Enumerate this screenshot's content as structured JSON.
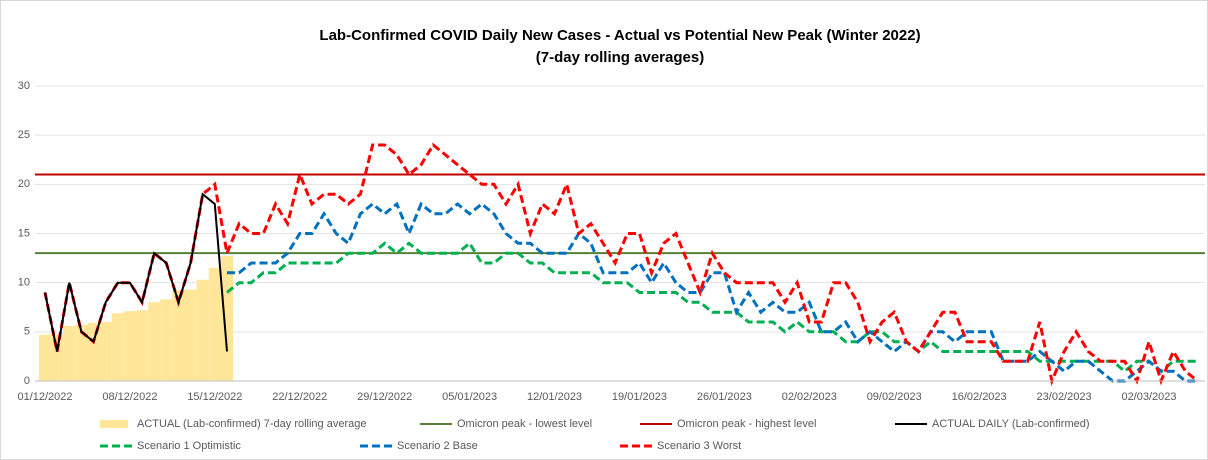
{
  "chart_data": {
    "type": "line",
    "title": "Lab-Confirmed COVID Daily New Cases - Actual vs Potential New Peak (Winter 2022)",
    "subtitle": "(7-day rolling averages)",
    "categories": [
      "01/12/2022",
      null,
      null,
      null,
      null,
      null,
      null,
      "08/12/2022",
      null,
      null,
      null,
      null,
      null,
      null,
      "15/12/2022",
      null,
      null,
      null,
      null,
      null,
      null,
      "22/12/2022",
      null,
      null,
      null,
      null,
      null,
      null,
      "29/12/2022",
      null,
      null,
      null,
      null,
      null,
      null,
      "05/01/2023",
      null,
      null,
      null,
      null,
      null,
      null,
      "12/01/2023",
      null,
      null,
      null,
      null,
      null,
      null,
      "19/01/2023",
      null,
      null,
      null,
      null,
      null,
      null,
      "26/01/2023",
      null,
      null,
      null,
      null,
      null,
      null,
      "02/02/2023",
      null,
      null,
      null,
      null,
      null,
      null,
      "09/02/2023",
      null,
      null,
      null,
      null,
      null,
      null,
      "16/02/2023",
      null,
      null,
      null,
      null,
      null,
      null,
      "23/02/2023",
      null,
      null,
      null,
      null,
      null,
      null,
      "02/03/2023",
      null,
      null,
      null,
      null
    ],
    "ylim": [
      0,
      30
    ],
    "yticks": [
      0,
      5,
      10,
      15,
      20,
      25,
      30
    ],
    "grid": true,
    "series": [
      {
        "name": "ACTUAL (Lab-confirmed) 7-day rolling average",
        "style": "bar",
        "color": "#ffe699",
        "values": [
          4.7,
          4.7,
          5.6,
          5.7,
          5.9,
          6.0,
          6.9,
          7.1,
          7.2,
          8.0,
          8.3,
          9.2,
          9.3,
          10.3,
          11.5,
          12.7,
          null,
          null,
          null,
          null,
          null,
          null,
          null,
          null,
          null,
          null,
          null,
          null,
          null,
          null,
          null,
          null,
          null,
          null,
          null,
          null,
          null,
          null,
          null,
          null,
          null,
          null,
          null,
          null,
          null,
          null,
          null,
          null,
          null,
          null,
          null,
          null,
          null,
          null,
          null,
          null,
          null,
          null,
          null,
          null,
          null,
          null,
          null,
          null,
          null,
          null,
          null,
          null,
          null,
          null,
          null,
          null,
          null,
          null,
          null,
          null,
          null,
          null,
          null,
          null,
          null,
          null,
          null,
          null,
          null,
          null,
          null,
          null,
          null,
          null,
          null,
          null,
          null,
          null,
          null,
          null
        ]
      },
      {
        "name": "Omicron peak - lowest level",
        "style": "hline",
        "color": "#548235",
        "value": 13
      },
      {
        "name": "Omicron peak - highest level",
        "style": "hline",
        "color": "#c00000",
        "value": 21
      },
      {
        "name": "ACTUAL DAILY (Lab-confirmed)",
        "style": "solid",
        "color": "#000000",
        "values": [
          9,
          3,
          10,
          5,
          4,
          8,
          10,
          10,
          8,
          13,
          12,
          8,
          12,
          19,
          18,
          3,
          null,
          null,
          null,
          null,
          null,
          null,
          null,
          null,
          null,
          null,
          null,
          null,
          null,
          null,
          null,
          null,
          null,
          null,
          null,
          null,
          null,
          null,
          null,
          null,
          null,
          null,
          null,
          null,
          null,
          null,
          null,
          null,
          null,
          null,
          null,
          null,
          null,
          null,
          null,
          null,
          null,
          null,
          null,
          null,
          null,
          null,
          null,
          null,
          null,
          null,
          null,
          null,
          null,
          null,
          null,
          null,
          null,
          null,
          null,
          null,
          null,
          null,
          null,
          null,
          null,
          null,
          null,
          null,
          null,
          null,
          null,
          null,
          null,
          null,
          null,
          null,
          null,
          null,
          null,
          null
        ]
      },
      {
        "name": "Scenario 1 Optimistic",
        "style": "dashed",
        "color": "#00b050",
        "values": [
          null,
          null,
          null,
          null,
          null,
          null,
          null,
          null,
          null,
          null,
          null,
          null,
          null,
          null,
          null,
          9,
          10,
          10,
          11,
          11,
          12,
          12,
          12,
          12,
          12,
          13,
          13,
          13,
          14,
          13,
          14,
          13,
          13,
          13,
          13,
          14,
          12,
          12,
          13,
          13,
          12,
          12,
          11,
          11,
          11,
          11,
          10,
          10,
          10,
          9,
          9,
          9,
          9,
          8,
          8,
          7,
          7,
          7,
          6,
          6,
          6,
          5,
          6,
          5,
          5,
          5,
          4,
          4,
          5,
          5,
          4,
          4,
          3,
          4,
          3,
          3,
          3,
          3,
          3,
          3,
          3,
          3,
          2,
          2,
          2,
          2,
          2,
          2,
          2,
          1,
          2,
          2,
          1,
          2,
          2,
          2
        ]
      },
      {
        "name": "Scenario 2 Base",
        "style": "dashed",
        "color": "#0070c0",
        "values": [
          null,
          null,
          null,
          null,
          null,
          null,
          null,
          null,
          null,
          null,
          null,
          null,
          null,
          null,
          null,
          11,
          11,
          12,
          12,
          12,
          13,
          15,
          15,
          17,
          15,
          14,
          17,
          18,
          17,
          18,
          15,
          18,
          17,
          17,
          18,
          17,
          18,
          17,
          15,
          14,
          14,
          13,
          13,
          13,
          15,
          14,
          11,
          11,
          11,
          12,
          10,
          12,
          10,
          9,
          9,
          11,
          11,
          7,
          9,
          7,
          8,
          7,
          7,
          8,
          5,
          5,
          6,
          4,
          5,
          4,
          3,
          4,
          3,
          5,
          5,
          4,
          5,
          5,
          5,
          2,
          2,
          2,
          3,
          2,
          1,
          2,
          2,
          1,
          0,
          0,
          1,
          2,
          1,
          1,
          0,
          0
        ]
      },
      {
        "name": "Scenario 3 Worst",
        "style": "dashed",
        "color": "#ff0000",
        "values": [
          9,
          3,
          10,
          5,
          4,
          8,
          10,
          10,
          8,
          13,
          12,
          8,
          12,
          19,
          20,
          13,
          16,
          15,
          15,
          18,
          16,
          21,
          18,
          19,
          19,
          18,
          19,
          24,
          24,
          23,
          21,
          22,
          24,
          23,
          22,
          21,
          20,
          20,
          18,
          20,
          15,
          18,
          17,
          20,
          15,
          16,
          14,
          12,
          15,
          15,
          11,
          14,
          15,
          12,
          9,
          13,
          11,
          10,
          10,
          10,
          10,
          8,
          10,
          6,
          6,
          10,
          10,
          8,
          4,
          6,
          7,
          4,
          3,
          5,
          7,
          7,
          4,
          4,
          4,
          2,
          2,
          2,
          6,
          0,
          3,
          5,
          3,
          2,
          2,
          2,
          0,
          4,
          0,
          3,
          1,
          0
        ]
      }
    ]
  }
}
